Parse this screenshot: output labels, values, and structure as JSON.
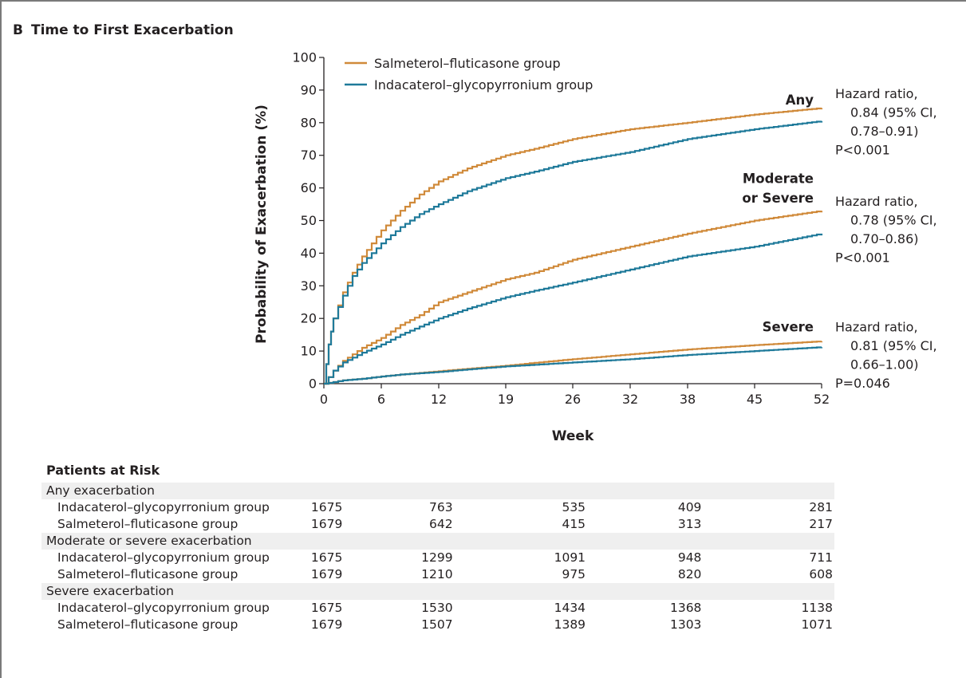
{
  "panel": {
    "letter": "B",
    "title": "Time to First Exacerbation"
  },
  "chart_data": {
    "type": "line",
    "ylabel": "Probability of Exacerbation (%)",
    "xlabel": "Week",
    "xlim": [
      0,
      52
    ],
    "ylim": [
      0,
      100
    ],
    "xticks": [
      0,
      6,
      12,
      19,
      26,
      32,
      38,
      45,
      52
    ],
    "yticks": [
      0,
      10,
      20,
      30,
      40,
      50,
      60,
      70,
      80,
      90,
      100
    ],
    "grid": false,
    "legend_position": "top-left",
    "legend": [
      {
        "label": "Salmeterol–fluticasone group",
        "color": "#d08a3a"
      },
      {
        "label": "Indacaterol–glycopyrronium group",
        "color": "#1f7a9a"
      }
    ],
    "series": [
      {
        "name": "Salmeterol–fluticasone group",
        "outcome": "Any",
        "color": "#d08a3a",
        "x": [
          0,
          0.5,
          1,
          2,
          3,
          4,
          5,
          6,
          8,
          10,
          12,
          15,
          19,
          22,
          26,
          32,
          38,
          45,
          52
        ],
        "y": [
          0,
          12,
          20,
          28,
          34,
          39,
          43,
          47,
          53,
          58,
          62,
          66,
          70,
          72,
          75,
          78,
          80,
          82.5,
          84.5
        ]
      },
      {
        "name": "Indacaterol–glycopyrronium group",
        "outcome": "Any",
        "color": "#1f7a9a",
        "x": [
          0,
          0.5,
          1,
          2,
          3,
          4,
          5,
          6,
          8,
          10,
          12,
          15,
          19,
          22,
          26,
          32,
          38,
          45,
          52
        ],
        "y": [
          0,
          12,
          20,
          27,
          33,
          37,
          40,
          43,
          48,
          52,
          55,
          59,
          63,
          65,
          68,
          71,
          75,
          78,
          80.5
        ]
      },
      {
        "name": "Salmeterol–fluticasone group",
        "outcome": "Moderate or Severe",
        "color": "#d08a3a",
        "x": [
          0,
          1,
          2,
          3,
          4,
          6,
          8,
          10,
          12,
          15,
          19,
          22,
          26,
          32,
          38,
          45,
          52
        ],
        "y": [
          0,
          4,
          7,
          9,
          11,
          14,
          18,
          21,
          25,
          28,
          32,
          34,
          38,
          42,
          46,
          50,
          53
        ]
      },
      {
        "name": "Indacaterol–glycopyrronium group",
        "outcome": "Moderate or Severe",
        "color": "#1f7a9a",
        "x": [
          0,
          1,
          2,
          3,
          4,
          6,
          8,
          10,
          12,
          15,
          19,
          22,
          26,
          32,
          38,
          45,
          52
        ],
        "y": [
          0,
          4,
          6.5,
          8,
          9.5,
          12,
          15,
          17.5,
          20,
          23,
          26.5,
          28.5,
          31,
          35,
          39,
          42,
          46
        ]
      },
      {
        "name": "Salmeterol–fluticasone group",
        "outcome": "Severe",
        "color": "#d08a3a",
        "x": [
          0,
          1,
          2,
          4,
          6,
          8,
          12,
          16,
          19,
          22,
          26,
          32,
          38,
          45,
          52
        ],
        "y": [
          0,
          0.5,
          1,
          1.5,
          2.2,
          2.8,
          3.8,
          4.8,
          5.5,
          6.4,
          7.5,
          9,
          10.5,
          11.8,
          13
        ]
      },
      {
        "name": "Indacaterol–glycopyrronium group",
        "outcome": "Severe",
        "color": "#1f7a9a",
        "x": [
          0,
          1,
          2,
          4,
          6,
          8,
          12,
          16,
          19,
          22,
          26,
          32,
          38,
          45,
          52
        ],
        "y": [
          0,
          0.5,
          1,
          1.5,
          2.2,
          2.8,
          3.6,
          4.6,
          5.3,
          5.8,
          6.5,
          7.5,
          8.8,
          10,
          11.2
        ]
      }
    ],
    "curve_labels": [
      {
        "text": "Any",
        "y": 87
      },
      {
        "text": "Moderate",
        "y": 63
      },
      {
        "text": "or Severe",
        "y": 57
      },
      {
        "text": "Severe",
        "y": 17.5
      }
    ],
    "annotations": [
      {
        "lines": [
          "Hazard ratio,",
          "0.84 (95% CI,",
          "0.78–0.91)",
          "P<0.001"
        ],
        "y": 89
      },
      {
        "lines": [
          "Hazard ratio,",
          "0.78 (95% CI,",
          "0.70–0.86)",
          "P<0.001"
        ],
        "y": 56
      },
      {
        "lines": [
          "Hazard ratio,",
          "0.81 (95% CI,",
          "0.66–1.00)",
          "P=0.046"
        ],
        "y": 17.5
      }
    ]
  },
  "risk_table": {
    "title": "Patients at Risk",
    "groups": [
      {
        "label": "Any exacerbation",
        "rows": [
          {
            "name": "Indacaterol–glycopyrronium group",
            "values": [
              "1675",
              "763",
              "535",
              "409",
              "281"
            ]
          },
          {
            "name": "Salmeterol–fluticasone group",
            "values": [
              "1679",
              "642",
              "415",
              "313",
              "217"
            ]
          }
        ]
      },
      {
        "label": "Moderate or severe exacerbation",
        "rows": [
          {
            "name": "Indacaterol–glycopyrronium group",
            "values": [
              "1675",
              "1299",
              "1091",
              "948",
              "711"
            ]
          },
          {
            "name": "Salmeterol–fluticasone group",
            "values": [
              "1679",
              "1210",
              "975",
              "820",
              "608"
            ]
          }
        ]
      },
      {
        "label": "Severe exacerbation",
        "rows": [
          {
            "name": "Indacaterol–glycopyrronium group",
            "values": [
              "1675",
              "1530",
              "1434",
              "1368",
              "1138"
            ]
          },
          {
            "name": "Salmeterol–fluticasone group",
            "values": [
              "1679",
              "1507",
              "1389",
              "1303",
              "1071"
            ]
          }
        ]
      }
    ]
  }
}
